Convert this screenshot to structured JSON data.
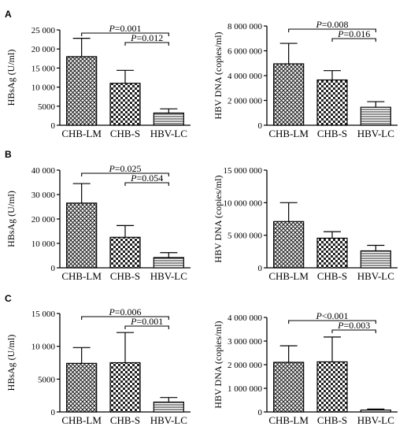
{
  "figure": {
    "panel_labels": [
      "A",
      "B",
      "C"
    ]
  },
  "chart_data": [
    {
      "type": "bar",
      "panel": "A",
      "categories": [
        "CHB-LM",
        "CHB-S",
        "HBV-LC"
      ],
      "values": [
        18000,
        11000,
        3200
      ],
      "errors": [
        4800,
        3400,
        1100
      ],
      "ylabel": "HBsAg (U/ml)",
      "ylim": [
        0,
        25000
      ],
      "yticks": [
        0,
        5000,
        10000,
        15000,
        20000,
        25000
      ],
      "ytick_labels": [
        "0",
        "5000",
        "10 000",
        "15 000",
        "20 000",
        "25 000"
      ],
      "comparisons": [
        {
          "from": 0,
          "to": 2,
          "text": "=0.001",
          "level": 0
        },
        {
          "from": 1,
          "to": 2,
          "text": "=0.012",
          "level": 1
        }
      ]
    },
    {
      "type": "bar",
      "panel": "A",
      "categories": [
        "CHB-LM",
        "CHB-S",
        "HBV-LC"
      ],
      "values": [
        4950000,
        3650000,
        1450000
      ],
      "errors": [
        1650000,
        750000,
        450000
      ],
      "ylabel": "HBV DNA (copies/ml)",
      "ylim": [
        0,
        8000000
      ],
      "yticks": [
        0,
        2000000,
        4000000,
        6000000,
        8000000
      ],
      "ytick_labels": [
        "0",
        "2 000 000",
        "4 000 000",
        "6 000 000",
        "8 000 000"
      ],
      "comparisons": [
        {
          "from": 0,
          "to": 2,
          "text": "=0.008",
          "level": 0
        },
        {
          "from": 1,
          "to": 2,
          "text": "=0.016",
          "level": 1
        }
      ]
    },
    {
      "type": "bar",
      "panel": "B",
      "categories": [
        "CHB-LM",
        "CHB-S",
        "HBV-LC"
      ],
      "values": [
        26500,
        12500,
        4200
      ],
      "errors": [
        8000,
        4800,
        2000
      ],
      "ylabel": "HBsAg (U/ml)",
      "ylim": [
        0,
        40000
      ],
      "yticks": [
        0,
        10000,
        20000,
        30000,
        40000
      ],
      "ytick_labels": [
        "0",
        "10 000",
        "20 000",
        "30 000",
        "40 000"
      ],
      "comparisons": [
        {
          "from": 0,
          "to": 2,
          "text": "=0.025",
          "level": 0
        },
        {
          "from": 1,
          "to": 2,
          "text": "=0.054",
          "level": 1
        }
      ]
    },
    {
      "type": "bar",
      "panel": "B",
      "categories": [
        "CHB-LM",
        "CHB-S",
        "HBV-LC"
      ],
      "values": [
        7100000,
        4550000,
        2600000
      ],
      "errors": [
        2900000,
        1000000,
        850000
      ],
      "ylabel": "HBV DNA (copies/ml)",
      "ylim": [
        0,
        15000000
      ],
      "yticks": [
        0,
        5000000,
        10000000,
        15000000
      ],
      "ytick_labels": [
        "0",
        "5 000 000",
        "10 000 000",
        "15 000 000"
      ],
      "comparisons": []
    },
    {
      "type": "bar",
      "panel": "C",
      "categories": [
        "CHB-LM",
        "CHB-S",
        "HBV-LC"
      ],
      "values": [
        7400,
        7500,
        1500
      ],
      "errors": [
        2400,
        4600,
        700
      ],
      "ylabel": "HBsAg (U/ml)",
      "ylim": [
        0,
        15000
      ],
      "yticks": [
        0,
        5000,
        10000,
        15000
      ],
      "ytick_labels": [
        "0",
        "5000",
        "10 000",
        "15 000"
      ],
      "comparisons": [
        {
          "from": 0,
          "to": 2,
          "text": "=0.006",
          "level": 0
        },
        {
          "from": 1,
          "to": 2,
          "text": "=0.001",
          "level": 1
        }
      ]
    },
    {
      "type": "bar",
      "panel": "C",
      "categories": [
        "CHB-LM",
        "CHB-S",
        "HBV-LC"
      ],
      "values": [
        2100000,
        2120000,
        80000
      ],
      "errors": [
        700000,
        1050000,
        40000
      ],
      "ylabel": "HBV DNA (copies/ml)",
      "ylim": [
        0,
        4000000
      ],
      "yticks": [
        0,
        1000000,
        2000000,
        3000000,
        4000000
      ],
      "ytick_labels": [
        "0",
        "1 000 000",
        "2 000 000",
        "3 000 000",
        "4 000 000"
      ],
      "comparisons": [
        {
          "from": 0,
          "to": 2,
          "text": "<0.001",
          "level": 0
        },
        {
          "from": 1,
          "to": 2,
          "text": "=0.003",
          "level": 1
        }
      ]
    }
  ]
}
